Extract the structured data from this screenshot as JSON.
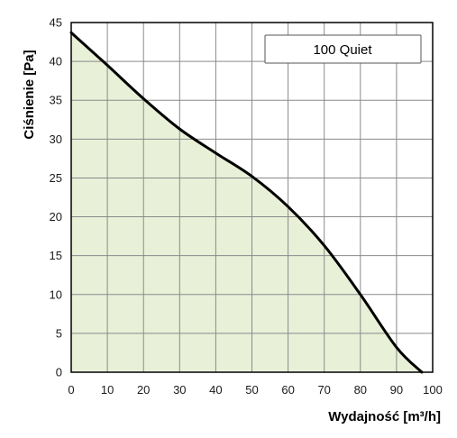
{
  "chart_data": {
    "type": "area",
    "title": "",
    "xlabel": "Wydajność [m³/h]",
    "ylabel": "Ciśnienie [Pa]",
    "xlim": [
      0,
      100
    ],
    "ylim": [
      0,
      45
    ],
    "x_ticks": [
      "0",
      "10",
      "20",
      "30",
      "40",
      "50",
      "60",
      "70",
      "80",
      "90",
      "100"
    ],
    "y_ticks": [
      "0",
      "5",
      "10",
      "15",
      "20",
      "25",
      "30",
      "35",
      "40",
      "45"
    ],
    "grid": true,
    "legend_position": "top-right",
    "series": [
      {
        "name": "100 Quiet",
        "x": [
          0,
          10,
          20,
          30,
          40,
          50,
          60,
          70,
          80,
          90,
          97
        ],
        "y": [
          43.7,
          39.5,
          35.2,
          31.3,
          28.2,
          25.2,
          21.3,
          16.3,
          10.0,
          3.2,
          0
        ],
        "line_color": "#000000",
        "fill_color": "#e8f0d8"
      }
    ]
  }
}
